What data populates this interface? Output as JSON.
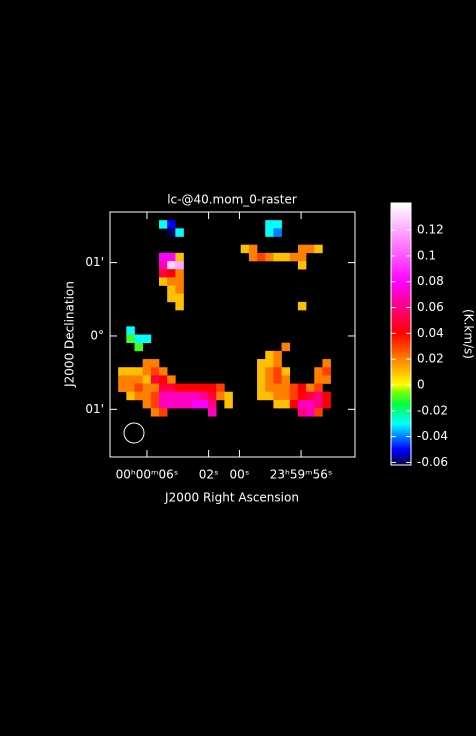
{
  "chart_data": {
    "type": "raster",
    "title": "lc-@40.mom_0-raster",
    "xlabel": "J2000 Right Ascension",
    "ylabel": "J2000 Declination",
    "xlim": [
      8.4,
      -7.5
    ],
    "xticks": [
      {
        "value": 6,
        "label": "00ʰ00ᵐ06ˢ"
      },
      {
        "value": 2,
        "label": "02ˢ"
      },
      {
        "value": 0,
        "label": "00ˢ"
      },
      {
        "value": -4,
        "label": "23ʰ59ᵐ56ˢ"
      }
    ],
    "ylim": [
      -1.65,
      1.69
    ],
    "yticks": [
      {
        "value": 1,
        "label": "01'"
      },
      {
        "value": 0,
        "label": "0°"
      },
      {
        "value": -1,
        "label": "01'"
      }
    ],
    "colorbar": {
      "label": "(K.km/s)",
      "clim": [
        -0.062,
        0.141
      ],
      "ticks": [
        0.12,
        0.1,
        0.08,
        0.06,
        0.04,
        0.02,
        0,
        -0.02,
        -0.04,
        -0.06
      ],
      "colorscale": [
        [
          -0.062,
          "#000040"
        ],
        [
          -0.05,
          "#0000ff"
        ],
        [
          -0.04,
          "#0080ff"
        ],
        [
          -0.03,
          "#00ffff"
        ],
        [
          -0.015,
          "#00ff40"
        ],
        [
          -0.005,
          "#80ff00"
        ],
        [
          0,
          "#ffff00"
        ],
        [
          0.02,
          "#ff8000"
        ],
        [
          0.04,
          "#ff0000"
        ],
        [
          0.06,
          "#ff0080"
        ],
        [
          0.08,
          "#ff00ff"
        ],
        [
          0.11,
          "#ff80ff"
        ],
        [
          0.141,
          "#ffffff"
        ]
      ]
    },
    "cells": [
      {
        "col": 6,
        "row": 1,
        "value": -0.03
      },
      {
        "col": 7,
        "row": 1,
        "value": -0.05
      },
      {
        "col": 7,
        "row": 2,
        "value": -0.06
      },
      {
        "col": 8,
        "row": 2,
        "value": -0.03
      },
      {
        "col": 19,
        "row": 1,
        "value": -0.03
      },
      {
        "col": 20,
        "row": 1,
        "value": -0.03
      },
      {
        "col": 19,
        "row": 2,
        "value": -0.03
      },
      {
        "col": 20,
        "row": 2,
        "value": -0.04
      },
      {
        "col": 16,
        "row": 4,
        "value": 0.01
      },
      {
        "col": 17,
        "row": 4,
        "value": 0.02
      },
      {
        "col": 23,
        "row": 4,
        "value": 0.02
      },
      {
        "col": 24,
        "row": 4,
        "value": 0.02
      },
      {
        "col": 25,
        "row": 4,
        "value": 0.01
      },
      {
        "col": 17,
        "row": 5,
        "value": 0.02
      },
      {
        "col": 18,
        "row": 5,
        "value": 0.03
      },
      {
        "col": 19,
        "row": 5,
        "value": 0.02
      },
      {
        "col": 20,
        "row": 5,
        "value": 0.01
      },
      {
        "col": 21,
        "row": 5,
        "value": 0.01
      },
      {
        "col": 22,
        "row": 5,
        "value": 0.02
      },
      {
        "col": 23,
        "row": 5,
        "value": 0.02
      },
      {
        "col": 23,
        "row": 6,
        "value": 0.01
      },
      {
        "col": 23,
        "row": 11,
        "value": 0.01
      },
      {
        "col": 6,
        "row": 5,
        "value": 0.08
      },
      {
        "col": 7,
        "row": 5,
        "value": 0.08
      },
      {
        "col": 8,
        "row": 5,
        "value": 0.01
      },
      {
        "col": 6,
        "row": 6,
        "value": 0.07
      },
      {
        "col": 7,
        "row": 6,
        "value": 0.13
      },
      {
        "col": 8,
        "row": 6,
        "value": 0.12
      },
      {
        "col": 6,
        "row": 7,
        "value": 0.05
      },
      {
        "col": 7,
        "row": 7,
        "value": 0.04
      },
      {
        "col": 8,
        "row": 7,
        "value": 0.02
      },
      {
        "col": 6,
        "row": 8,
        "value": 0.01
      },
      {
        "col": 7,
        "row": 8,
        "value": 0.02
      },
      {
        "col": 8,
        "row": 8,
        "value": 0.02
      },
      {
        "col": 7,
        "row": 9,
        "value": 0.01
      },
      {
        "col": 8,
        "row": 9,
        "value": 0.02
      },
      {
        "col": 7,
        "row": 10,
        "value": 0.01
      },
      {
        "col": 8,
        "row": 10,
        "value": 0.01
      },
      {
        "col": 8,
        "row": 11,
        "value": 0.01
      },
      {
        "col": 2,
        "row": 14,
        "value": -0.03
      },
      {
        "col": 2,
        "row": 15,
        "value": -0.01
      },
      {
        "col": 3,
        "row": 15,
        "value": -0.03
      },
      {
        "col": 4,
        "row": 15,
        "value": -0.03
      },
      {
        "col": 3,
        "row": 16,
        "value": -0.01
      },
      {
        "col": 4,
        "row": 18,
        "value": 0.02
      },
      {
        "col": 5,
        "row": 18,
        "value": 0.02
      },
      {
        "col": 1,
        "row": 19,
        "value": 0.01
      },
      {
        "col": 2,
        "row": 19,
        "value": 0.01
      },
      {
        "col": 3,
        "row": 19,
        "value": 0.01
      },
      {
        "col": 4,
        "row": 19,
        "value": 0.02
      },
      {
        "col": 5,
        "row": 19,
        "value": 0.03
      },
      {
        "col": 6,
        "row": 19,
        "value": 0.02
      },
      {
        "col": 1,
        "row": 20,
        "value": 0.02
      },
      {
        "col": 2,
        "row": 20,
        "value": 0.02
      },
      {
        "col": 3,
        "row": 20,
        "value": 0.02
      },
      {
        "col": 4,
        "row": 20,
        "value": 0.01
      },
      {
        "col": 5,
        "row": 20,
        "value": 0.05
      },
      {
        "col": 6,
        "row": 20,
        "value": 0.04
      },
      {
        "col": 7,
        "row": 20,
        "value": 0.02
      },
      {
        "col": 1,
        "row": 21,
        "value": 0.02
      },
      {
        "col": 2,
        "row": 21,
        "value": 0.02
      },
      {
        "col": 3,
        "row": 21,
        "value": 0.03
      },
      {
        "col": 4,
        "row": 21,
        "value": 0.02
      },
      {
        "col": 5,
        "row": 21,
        "value": 0.02
      },
      {
        "col": 6,
        "row": 21,
        "value": 0.05
      },
      {
        "col": 7,
        "row": 21,
        "value": 0.05
      },
      {
        "col": 8,
        "row": 21,
        "value": 0.04
      },
      {
        "col": 9,
        "row": 21,
        "value": 0.04
      },
      {
        "col": 10,
        "row": 21,
        "value": 0.04
      },
      {
        "col": 11,
        "row": 21,
        "value": 0.04
      },
      {
        "col": 12,
        "row": 21,
        "value": 0.04
      },
      {
        "col": 13,
        "row": 21,
        "value": 0.03
      },
      {
        "col": 2,
        "row": 22,
        "value": 0.01
      },
      {
        "col": 3,
        "row": 22,
        "value": 0.02
      },
      {
        "col": 4,
        "row": 22,
        "value": 0.02
      },
      {
        "col": 5,
        "row": 22,
        "value": 0.03
      },
      {
        "col": 6,
        "row": 22,
        "value": 0.07
      },
      {
        "col": 7,
        "row": 22,
        "value": 0.07
      },
      {
        "col": 8,
        "row": 22,
        "value": 0.07
      },
      {
        "col": 9,
        "row": 22,
        "value": 0.07
      },
      {
        "col": 10,
        "row": 22,
        "value": 0.07
      },
      {
        "col": 11,
        "row": 22,
        "value": 0.06
      },
      {
        "col": 12,
        "row": 22,
        "value": 0.05
      },
      {
        "col": 13,
        "row": 22,
        "value": 0.02
      },
      {
        "col": 14,
        "row": 22,
        "value": 0.01
      },
      {
        "col": 4,
        "row": 23,
        "value": 0.02
      },
      {
        "col": 5,
        "row": 23,
        "value": 0.03
      },
      {
        "col": 6,
        "row": 23,
        "value": 0.07
      },
      {
        "col": 7,
        "row": 23,
        "value": 0.07
      },
      {
        "col": 8,
        "row": 23,
        "value": 0.07
      },
      {
        "col": 9,
        "row": 23,
        "value": 0.07
      },
      {
        "col": 10,
        "row": 23,
        "value": 0.08
      },
      {
        "col": 11,
        "row": 23,
        "value": 0.08
      },
      {
        "col": 12,
        "row": 23,
        "value": 0.06
      },
      {
        "col": 14,
        "row": 23,
        "value": 0.01
      },
      {
        "col": 5,
        "row": 24,
        "value": 0.02
      },
      {
        "col": 6,
        "row": 24,
        "value": 0.03
      },
      {
        "col": 12,
        "row": 24,
        "value": 0.07
      },
      {
        "col": 21,
        "row": 16,
        "value": 0.02
      },
      {
        "col": 19,
        "row": 17,
        "value": 0.01
      },
      {
        "col": 20,
        "row": 17,
        "value": 0.02
      },
      {
        "col": 18,
        "row": 18,
        "value": 0.01
      },
      {
        "col": 19,
        "row": 18,
        "value": 0.01
      },
      {
        "col": 20,
        "row": 18,
        "value": 0.02
      },
      {
        "col": 26,
        "row": 18,
        "value": 0.02
      },
      {
        "col": 18,
        "row": 19,
        "value": 0.01
      },
      {
        "col": 19,
        "row": 19,
        "value": 0.02
      },
      {
        "col": 20,
        "row": 19,
        "value": 0.03
      },
      {
        "col": 21,
        "row": 19,
        "value": 0.01
      },
      {
        "col": 25,
        "row": 19,
        "value": 0.02
      },
      {
        "col": 26,
        "row": 19,
        "value": 0.03
      },
      {
        "col": 18,
        "row": 20,
        "value": 0.01
      },
      {
        "col": 19,
        "row": 20,
        "value": 0.02
      },
      {
        "col": 20,
        "row": 20,
        "value": 0.03
      },
      {
        "col": 21,
        "row": 20,
        "value": 0.02
      },
      {
        "col": 25,
        "row": 20,
        "value": 0.02
      },
      {
        "col": 26,
        "row": 20,
        "value": 0.02
      },
      {
        "col": 18,
        "row": 21,
        "value": 0.01
      },
      {
        "col": 19,
        "row": 21,
        "value": 0.02
      },
      {
        "col": 20,
        "row": 21,
        "value": 0.02
      },
      {
        "col": 21,
        "row": 21,
        "value": 0.02
      },
      {
        "col": 22,
        "row": 21,
        "value": 0.03
      },
      {
        "col": 23,
        "row": 21,
        "value": 0.04
      },
      {
        "col": 24,
        "row": 21,
        "value": 0.02
      },
      {
        "col": 25,
        "row": 21,
        "value": 0.03
      },
      {
        "col": 18,
        "row": 22,
        "value": 0.01
      },
      {
        "col": 19,
        "row": 22,
        "value": 0.01
      },
      {
        "col": 20,
        "row": 22,
        "value": 0.02
      },
      {
        "col": 21,
        "row": 22,
        "value": 0.02
      },
      {
        "col": 22,
        "row": 22,
        "value": 0.03
      },
      {
        "col": 23,
        "row": 22,
        "value": 0.04
      },
      {
        "col": 24,
        "row": 22,
        "value": 0.05
      },
      {
        "col": 25,
        "row": 22,
        "value": 0.06
      },
      {
        "col": 26,
        "row": 22,
        "value": 0.04
      },
      {
        "col": 20,
        "row": 23,
        "value": 0.01
      },
      {
        "col": 21,
        "row": 23,
        "value": 0.01
      },
      {
        "col": 22,
        "row": 23,
        "value": 0.04
      },
      {
        "col": 23,
        "row": 23,
        "value": 0.07
      },
      {
        "col": 24,
        "row": 23,
        "value": 0.07
      },
      {
        "col": 25,
        "row": 23,
        "value": 0.06
      },
      {
        "col": 26,
        "row": 23,
        "value": 0.04
      },
      {
        "col": 23,
        "row": 24,
        "value": 0.06
      },
      {
        "col": 24,
        "row": 24,
        "value": 0.07
      },
      {
        "col": 25,
        "row": 24,
        "value": 0.03
      }
    ]
  }
}
